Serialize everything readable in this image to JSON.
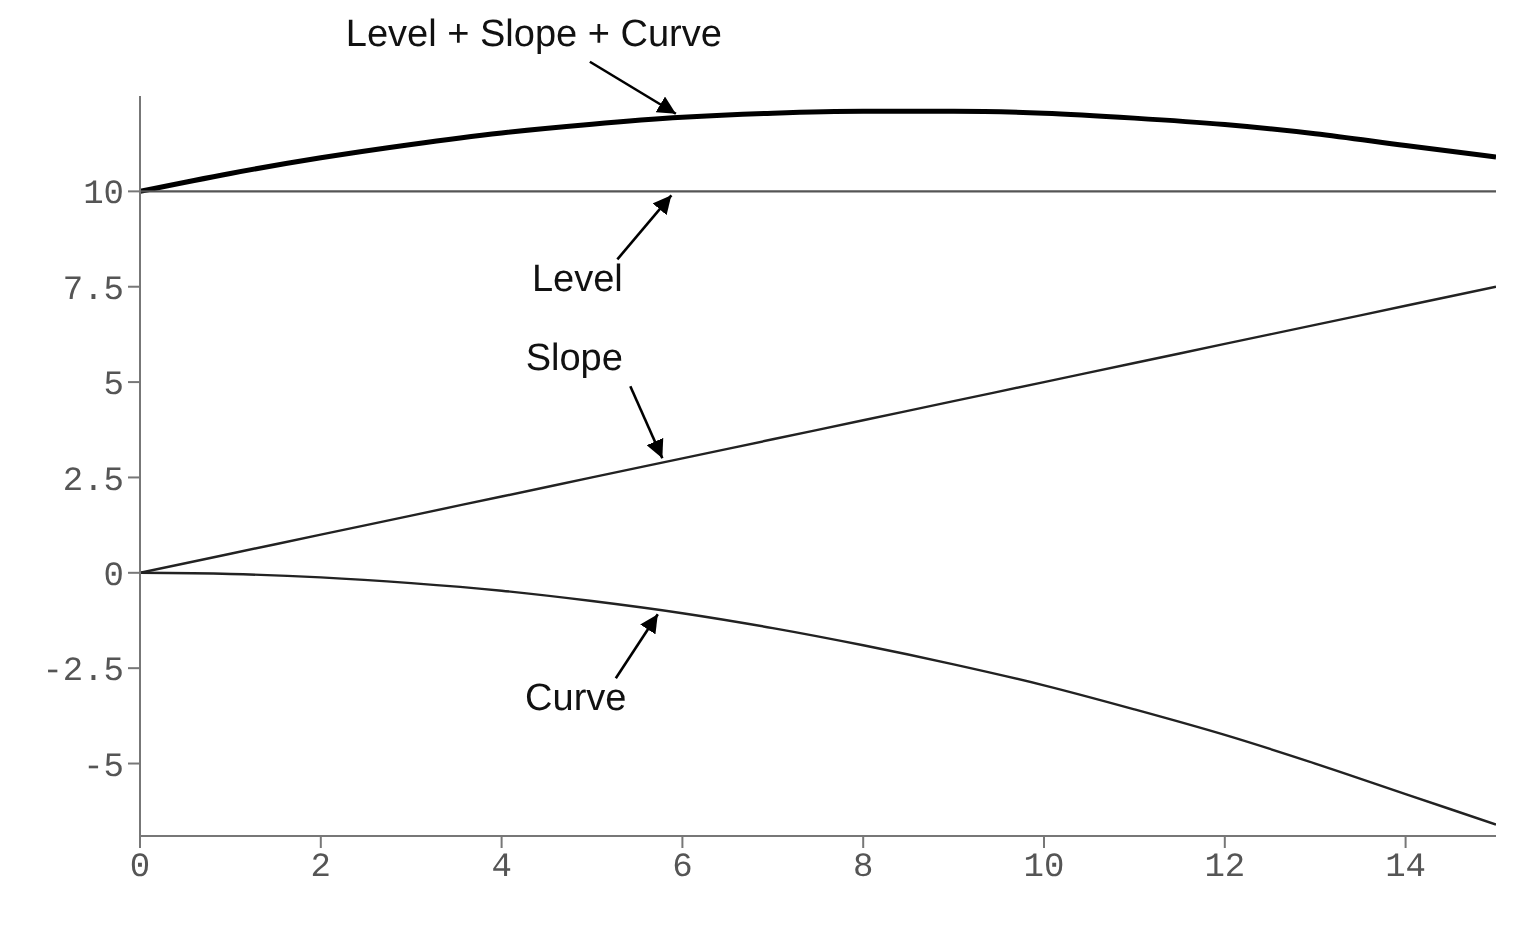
{
  "chart_data": {
    "type": "line",
    "x": [
      0,
      1,
      2,
      3,
      4,
      5,
      6,
      7,
      8,
      9,
      10,
      11,
      12,
      13,
      14,
      15
    ],
    "series": [
      {
        "color": "#000000",
        "values": [
          10,
          10.47,
          10.88,
          11.23,
          11.53,
          11.76,
          11.94,
          12.05,
          12.1,
          12.1,
          12.05,
          11.92,
          11.75,
          11.51,
          11.2,
          10.9
        ]
      },
      {
        "color": "#555555",
        "values": [
          10,
          10,
          10,
          10,
          10,
          10,
          10,
          10,
          10,
          10,
          10,
          10,
          10,
          10,
          10,
          10
        ]
      },
      {
        "color": "#222222",
        "values": [
          0,
          0.5,
          1,
          1.5,
          2,
          2.5,
          3,
          3.5,
          4,
          4.5,
          5,
          5.5,
          6,
          6.5,
          7,
          7.5
        ]
      },
      {
        "color": "#222222",
        "values": [
          0,
          -0.03,
          -0.12,
          -0.27,
          -0.47,
          -0.74,
          -1.06,
          -1.45,
          -1.9,
          -2.4,
          -2.95,
          -3.58,
          -4.25,
          -5,
          -5.8,
          -6.6
        ]
      }
    ],
    "xlim": [
      0,
      15
    ],
    "xticks": [
      0,
      2,
      4,
      6,
      8,
      10,
      12,
      14
    ],
    "ylim": [
      -6.9,
      12.5
    ],
    "yticks": [
      -5,
      -2.5,
      0,
      2.5,
      5,
      7.5,
      10
    ],
    "grid": false,
    "legend": false,
    "marker": "none",
    "line_style": "solid",
    "annotations": [
      {
        "text": "Level + Slope + Curve",
        "x": 5.95,
        "y": 11.93
      },
      {
        "text": "Level",
        "x": 5.9,
        "y": 10
      },
      {
        "text": "Slope",
        "x": 5.8,
        "y": 2.9
      },
      {
        "text": "Curve",
        "x": 5.75,
        "y": -0.98
      }
    ]
  }
}
